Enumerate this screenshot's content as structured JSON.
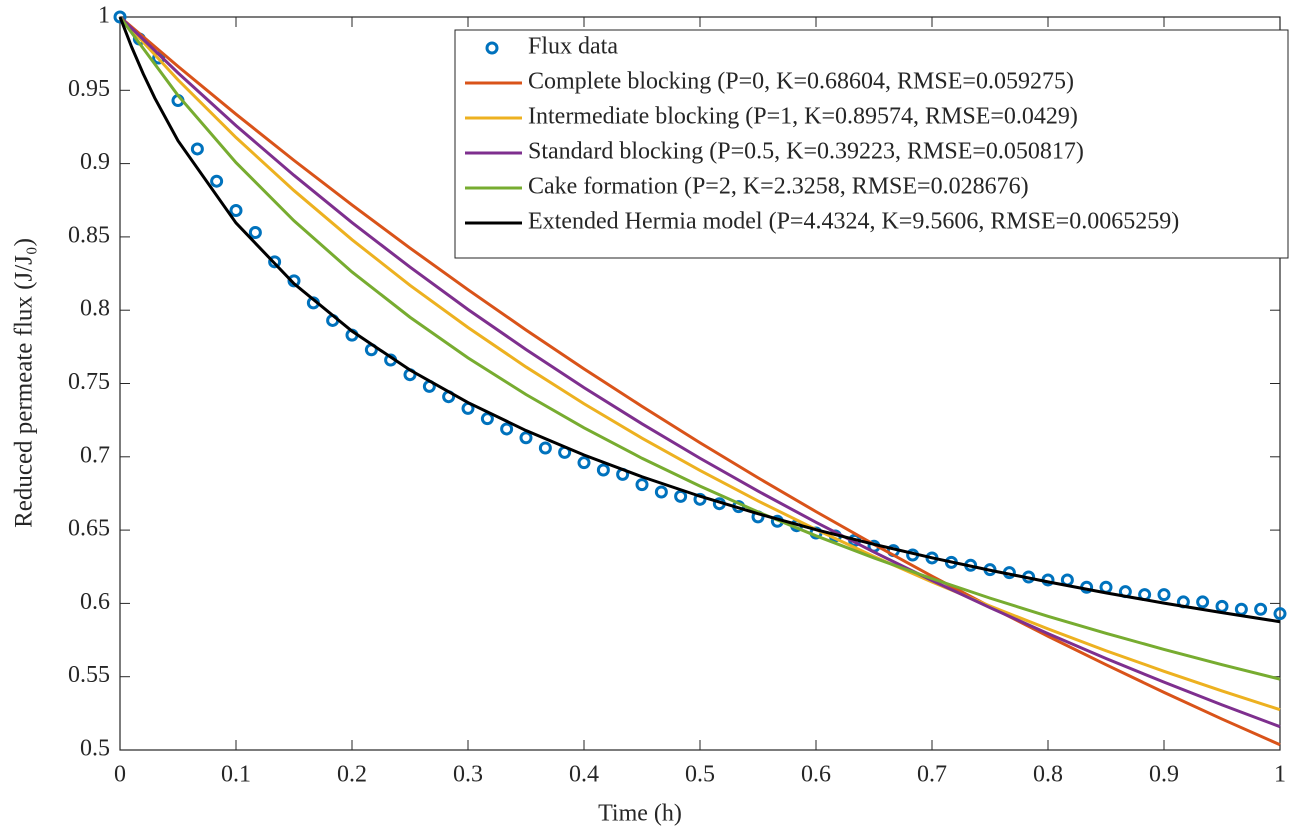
{
  "chart_data": {
    "type": "line",
    "x_label": "Time (h)",
    "y_label": "Reduced permeate flux (J/J₀)",
    "xlim": [
      0,
      1
    ],
    "ylim": [
      0.5,
      1
    ],
    "xticks": [
      0,
      0.1,
      0.2,
      0.3,
      0.4,
      0.5,
      0.6,
      0.7,
      0.8,
      0.9,
      1
    ],
    "yticks": [
      0.5,
      0.55,
      0.6,
      0.65,
      0.7,
      0.75,
      0.8,
      0.85,
      0.9,
      0.95,
      1
    ],
    "legend": "top-right",
    "series": [
      {
        "name": "Flux data",
        "color": "#0072BD",
        "marker": "circle",
        "x": [
          0,
          0.0167,
          0.0333,
          0.05,
          0.0667,
          0.0833,
          0.1,
          0.1167,
          0.1333,
          0.15,
          0.1667,
          0.1833,
          0.2,
          0.2167,
          0.2333,
          0.25,
          0.2667,
          0.2833,
          0.3,
          0.3167,
          0.3333,
          0.35,
          0.3667,
          0.3833,
          0.4,
          0.4167,
          0.4333,
          0.45,
          0.4667,
          0.4833,
          0.5,
          0.5167,
          0.5333,
          0.55,
          0.5667,
          0.5833,
          0.6,
          0.6167,
          0.6333,
          0.65,
          0.6667,
          0.6833,
          0.7,
          0.7167,
          0.7333,
          0.75,
          0.7667,
          0.7833,
          0.8,
          0.8167,
          0.8333,
          0.85,
          0.8667,
          0.8833,
          0.9,
          0.9167,
          0.9333,
          0.95,
          0.9667,
          0.9833,
          1
        ],
        "values": [
          1.0,
          0.985,
          0.972,
          0.943,
          0.91,
          0.888,
          0.868,
          0.853,
          0.833,
          0.82,
          0.805,
          0.793,
          0.783,
          0.773,
          0.766,
          0.756,
          0.748,
          0.741,
          0.733,
          0.726,
          0.719,
          0.713,
          0.706,
          0.703,
          0.696,
          0.691,
          0.688,
          0.681,
          0.676,
          0.673,
          0.671,
          0.668,
          0.666,
          0.659,
          0.656,
          0.653,
          0.648,
          0.646,
          0.643,
          0.639,
          0.636,
          0.633,
          0.631,
          0.628,
          0.626,
          0.623,
          0.621,
          0.618,
          0.616,
          0.616,
          0.611,
          0.611,
          0.608,
          0.606,
          0.606,
          0.601,
          0.601,
          0.598,
          0.596,
          0.596,
          0.593
        ]
      },
      {
        "name": "Complete blocking (P=0, K=0.68604, RMSE=0.059275)",
        "color": "#D95319",
        "x": [
          0,
          0.05,
          0.1,
          0.15,
          0.2,
          0.25,
          0.3,
          0.35,
          0.4,
          0.45,
          0.5,
          0.55,
          0.6,
          0.65,
          0.7,
          0.75,
          0.8,
          0.85,
          0.9,
          0.95,
          1
        ],
        "values": [
          1,
          0.9663,
          0.9337,
          0.9022,
          0.8718,
          0.8424,
          0.814,
          0.7865,
          0.76,
          0.7344,
          0.7096,
          0.6857,
          0.6626,
          0.6402,
          0.6186,
          0.5978,
          0.5776,
          0.5582,
          0.5393,
          0.5211,
          0.5036
        ]
      },
      {
        "name": "Intermediate blocking (P=1, K=0.89574, RMSE=0.0429)",
        "color": "#EDB120",
        "x": [
          0,
          0.05,
          0.1,
          0.15,
          0.2,
          0.25,
          0.3,
          0.35,
          0.4,
          0.45,
          0.5,
          0.55,
          0.6,
          0.65,
          0.7,
          0.75,
          0.8,
          0.85,
          0.9,
          0.95,
          1
        ],
        "values": [
          1,
          0.9571,
          0.9178,
          0.8816,
          0.8481,
          0.817,
          0.7882,
          0.7613,
          0.7362,
          0.7127,
          0.6907,
          0.6699,
          0.6504,
          0.632,
          0.6146,
          0.5982,
          0.5826,
          0.5677,
          0.5537,
          0.5403,
          0.5275
        ]
      },
      {
        "name": "Standard blocking (P=0.5, K=0.39223, RMSE=0.050817)",
        "color": "#7E2F8E",
        "x": [
          0,
          0.05,
          0.1,
          0.15,
          0.2,
          0.25,
          0.3,
          0.35,
          0.4,
          0.45,
          0.5,
          0.55,
          0.6,
          0.65,
          0.7,
          0.75,
          0.8,
          0.85,
          0.9,
          0.95,
          1
        ],
        "values": [
          1,
          0.9619,
          0.9259,
          0.892,
          0.8598,
          0.8294,
          0.8005,
          0.7732,
          0.7472,
          0.7225,
          0.699,
          0.6766,
          0.6553,
          0.635,
          0.6156,
          0.5971,
          0.5794,
          0.5624,
          0.5463,
          0.5308,
          0.5159
        ]
      },
      {
        "name": "Cake formation (P=2, K=2.3258, RMSE=0.028676)",
        "color": "#77AC30",
        "x": [
          0,
          0.05,
          0.1,
          0.15,
          0.2,
          0.25,
          0.3,
          0.35,
          0.4,
          0.45,
          0.5,
          0.55,
          0.6,
          0.65,
          0.7,
          0.75,
          0.8,
          0.85,
          0.9,
          0.95,
          1
        ],
        "values": [
          1,
          0.9465,
          0.9007,
          0.861,
          0.8261,
          0.7952,
          0.7675,
          0.7425,
          0.7198,
          0.699,
          0.68,
          0.6624,
          0.6461,
          0.631,
          0.6169,
          0.6036,
          0.5912,
          0.5796,
          0.5686,
          0.5582,
          0.5483
        ]
      },
      {
        "name": "Extended Hermia model (P=4.4324, K=9.5606, RMSE=0.0065259)",
        "color": "#000000",
        "x": [
          0,
          0.01,
          0.02,
          0.03,
          0.05,
          0.1,
          0.15,
          0.2,
          0.25,
          0.3,
          0.35,
          0.4,
          0.45,
          0.5,
          0.55,
          0.6,
          0.65,
          0.7,
          0.75,
          0.8,
          0.85,
          0.9,
          0.95,
          1
        ],
        "values": [
          1,
          0.9796,
          0.9613,
          0.9447,
          0.9156,
          0.8595,
          0.8181,
          0.7857,
          0.7592,
          0.737,
          0.7179,
          0.7012,
          0.6864,
          0.6731,
          0.6612,
          0.6503,
          0.6403,
          0.6311,
          0.6226,
          0.6147,
          0.6072,
          0.6002,
          0.5937,
          0.5875
        ]
      }
    ]
  }
}
